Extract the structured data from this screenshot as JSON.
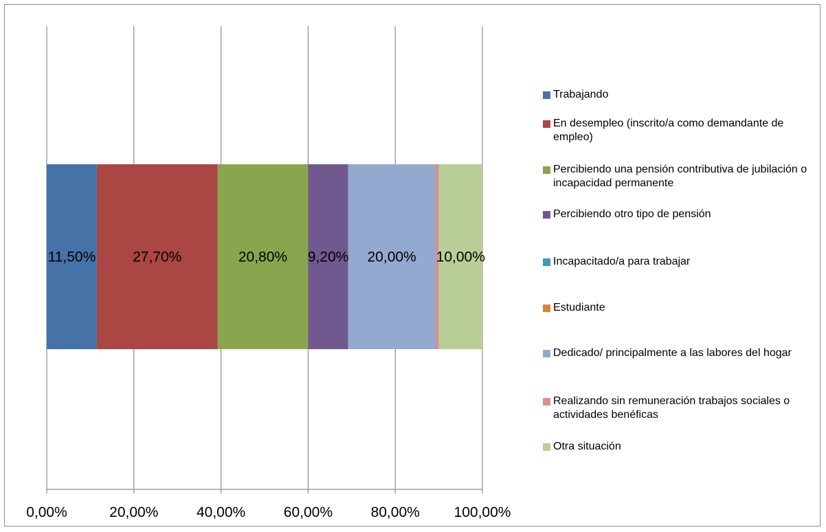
{
  "chart_data": {
    "type": "bar",
    "orientation": "horizontal",
    "stacked": true,
    "title": "",
    "xlabel": "",
    "ylabel": "",
    "xlim": [
      0,
      100
    ],
    "x_ticks": [
      "0,00%",
      "20,00%",
      "40,00%",
      "60,00%",
      "80,00%",
      "100,00%"
    ],
    "grid": true,
    "legend_position": "right",
    "series": [
      {
        "name": "Trabajando",
        "value": 11.5,
        "label": "11,50%",
        "color": "#4572a7"
      },
      {
        "name": "En desempleo (inscrito/a como demandante de empleo)",
        "value": 27.7,
        "label": "27,70%",
        "color": "#aa4643"
      },
      {
        "name": "Percibiendo una pensión contributiva de jubilación o incapacidad permanente",
        "value": 20.8,
        "label": "20,80%",
        "color": "#89a54e"
      },
      {
        "name": "Percibiendo otro tipo de pensión",
        "value": 9.2,
        "label": "9,20%",
        "color": "#71588f"
      },
      {
        "name": "Incapacitado/a para trabajar",
        "value": 0.0,
        "label": "",
        "color": "#4198af"
      },
      {
        "name": "Estudiante",
        "value": 0.0,
        "label": "",
        "color": "#db843d"
      },
      {
        "name": "Dedicado/ principalmente a las labores del hogar",
        "value": 20.0,
        "label": "20,00%",
        "color": "#93a9cf"
      },
      {
        "name": "Realizando sin remuneración trabajos sociales o actividades benéficas",
        "value": 0.8,
        "label": "",
        "color": "#d19392"
      },
      {
        "name": "Otra situación",
        "value": 10.0,
        "label": "10,00%",
        "color": "#b9cd96"
      }
    ]
  }
}
